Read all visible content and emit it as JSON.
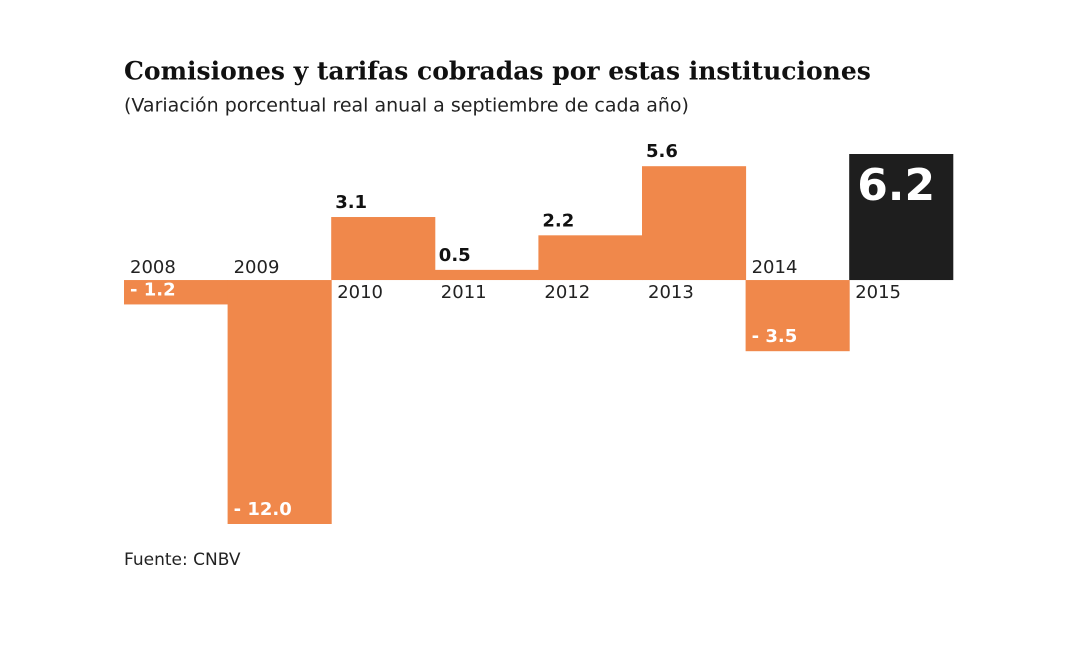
{
  "chart_data": {
    "type": "bar",
    "title": "Comisiones y tarifas cobradas por estas instituciones",
    "subtitle": "(Variación porcentual real anual a septiembre de cada año)",
    "source": "Fuente: CNBV",
    "categories": [
      "2008",
      "2009",
      "2010",
      "2011",
      "2012",
      "2013",
      "2014",
      "2015"
    ],
    "values": [
      -1.2,
      -12.0,
      3.1,
      0.5,
      2.2,
      5.6,
      -3.5,
      6.2
    ],
    "value_labels": [
      "- 1.2",
      "- 12.0",
      "3.1",
      "0.5",
      "2.2",
      "5.6",
      "- 3.5",
      "6.2"
    ],
    "colors": [
      "#f0884b",
      "#f0884b",
      "#f0884b",
      "#f0884b",
      "#f0884b",
      "#f0884b",
      "#f0884b",
      "#1e1e1e"
    ]
  }
}
